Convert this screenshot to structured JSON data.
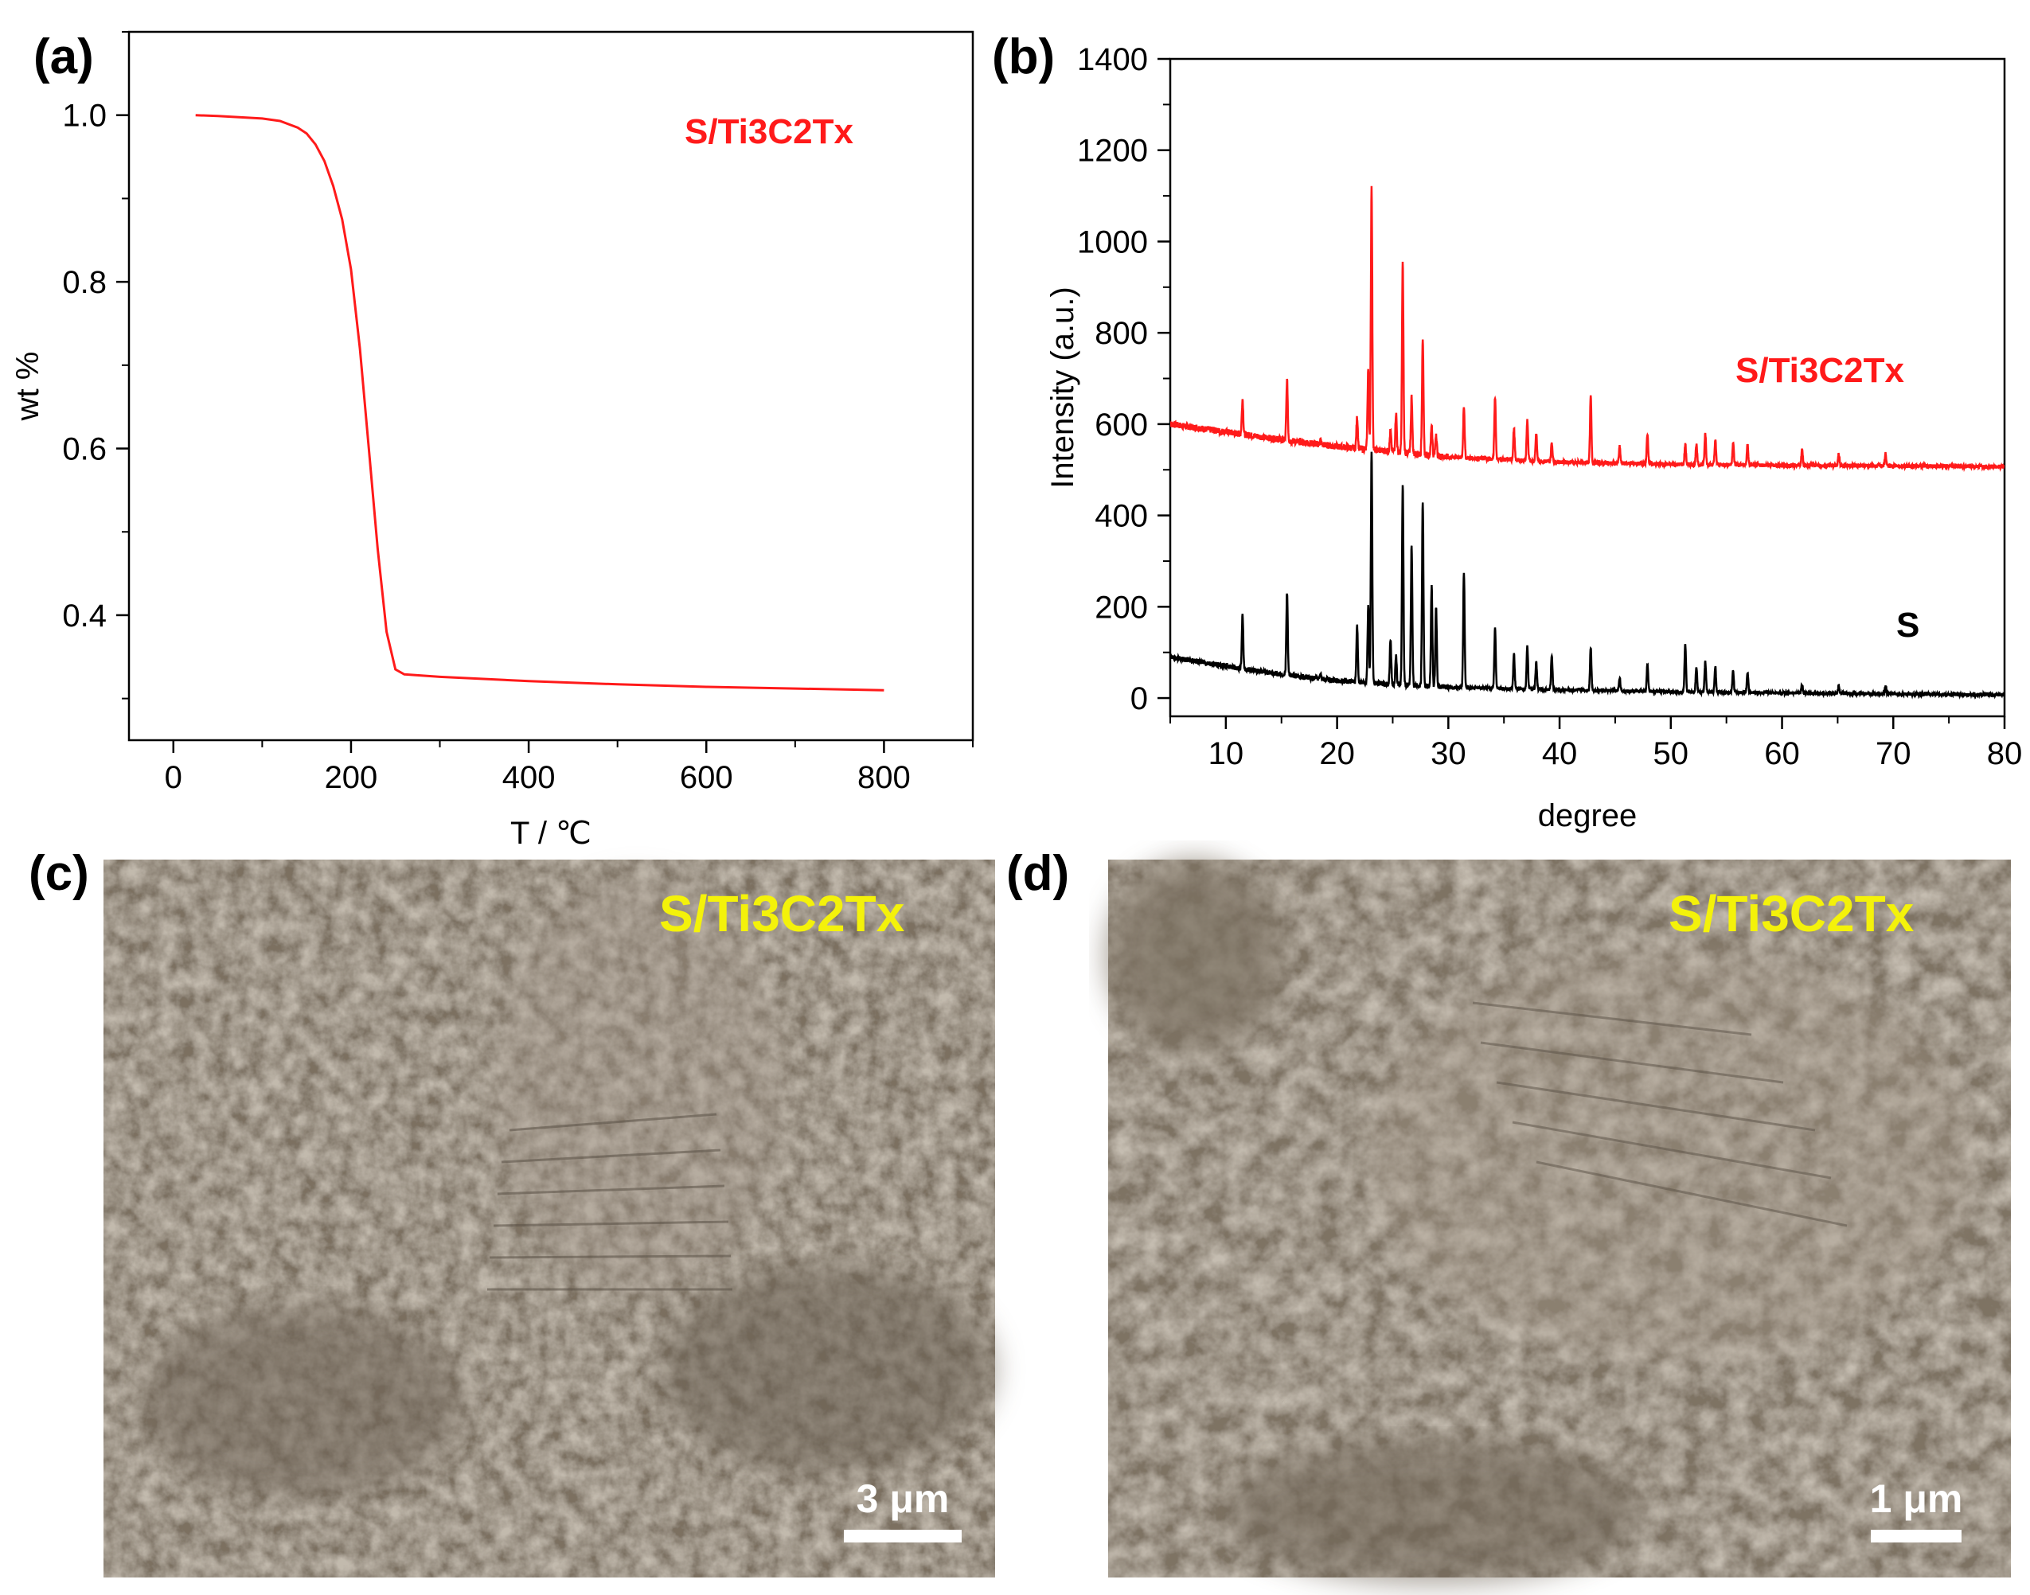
{
  "colors": {
    "red": "#ff1a1a",
    "black": "#000000",
    "sem_tint": "#8a7d6c",
    "sem_label": "#f4f20a"
  },
  "panels": {
    "a": {
      "letter": "(a)"
    },
    "b": {
      "letter": "(b)"
    },
    "c": {
      "letter": "(c)",
      "label": "S/Ti3C2Tx",
      "scale_bar": "3 μm"
    },
    "d": {
      "letter": "(d)",
      "label": "S/Ti3C2Tx",
      "scale_bar": "1 μm"
    }
  },
  "chart_data": [
    {
      "type": "line",
      "panel": "(a)",
      "xlabel": "T / ℃",
      "ylabel": "wt %",
      "xlim": [
        -50,
        900
      ],
      "ylim": [
        0.25,
        1.1
      ],
      "xticks": [
        0,
        200,
        400,
        600,
        800
      ],
      "yticks": [
        0.4,
        0.6,
        0.8,
        1.0
      ],
      "xtick_labels": [
        "0",
        "200",
        "400",
        "600",
        "800"
      ],
      "ytick_labels": [
        "0.4",
        "0.6",
        "0.8",
        "1.0"
      ],
      "grid": false,
      "series": [
        {
          "name": "S/Ti3C2Tx",
          "color": "#ff1a1a",
          "x": [
            25,
            50,
            100,
            120,
            140,
            150,
            160,
            170,
            180,
            190,
            200,
            210,
            220,
            230,
            240,
            250,
            260,
            300,
            400,
            500,
            600,
            700,
            800
          ],
          "y": [
            1.0,
            0.999,
            0.996,
            0.993,
            0.985,
            0.978,
            0.965,
            0.945,
            0.915,
            0.875,
            0.815,
            0.72,
            0.6,
            0.48,
            0.38,
            0.335,
            0.329,
            0.326,
            0.321,
            0.317,
            0.314,
            0.312,
            0.31
          ]
        }
      ]
    },
    {
      "type": "line",
      "panel": "(b)",
      "xlabel": "degree",
      "ylabel": "Intensity (a.u.)",
      "xlim": [
        5,
        80
      ],
      "ylim": [
        -40,
        1400
      ],
      "xticks": [
        10,
        20,
        30,
        40,
        50,
        60,
        70,
        80
      ],
      "yticks": [
        0,
        200,
        400,
        600,
        800,
        1000,
        1200,
        1400
      ],
      "xtick_labels": [
        "10",
        "20",
        "30",
        "40",
        "50",
        "60",
        "70",
        "80"
      ],
      "ytick_labels": [
        "0",
        "200",
        "400",
        "600",
        "800",
        "1000",
        "1200",
        "1400"
      ],
      "grid": false,
      "series": [
        {
          "name": "S/Ti3C2Tx",
          "color": "#ff1a1a",
          "baseline": [
            [
              5,
              600
            ],
            [
              10,
              583
            ],
            [
              15,
              566
            ],
            [
              20,
              551
            ],
            [
              25,
              540
            ],
            [
              30,
              528
            ],
            [
              40,
              517
            ],
            [
              50,
              512
            ],
            [
              60,
              510
            ],
            [
              80,
              507
            ]
          ],
          "peaks": [
            [
              11.5,
              655
            ],
            [
              15.5,
              695
            ],
            [
              18.5,
              565
            ],
            [
              21.8,
              615
            ],
            [
              22.8,
              720
            ],
            [
              23.1,
              1120
            ],
            [
              24.8,
              585
            ],
            [
              25.3,
              625
            ],
            [
              25.9,
              955
            ],
            [
              26.7,
              660
            ],
            [
              27.7,
              790
            ],
            [
              28.5,
              600
            ],
            [
              28.9,
              580
            ],
            [
              31.4,
              640
            ],
            [
              34.2,
              660
            ],
            [
              35.9,
              590
            ],
            [
              37.1,
              610
            ],
            [
              37.9,
              580
            ],
            [
              39.3,
              560
            ],
            [
              42.8,
              660
            ],
            [
              45.4,
              550
            ],
            [
              47.9,
              580
            ],
            [
              51.3,
              555
            ],
            [
              52.3,
              555
            ],
            [
              53.1,
              580
            ],
            [
              54.0,
              565
            ],
            [
              55.6,
              560
            ],
            [
              56.9,
              555
            ],
            [
              61.8,
              545
            ],
            [
              65.1,
              535
            ],
            [
              69.3,
              535
            ]
          ]
        },
        {
          "name": "S",
          "color": "#000000",
          "baseline": [
            [
              5,
              90
            ],
            [
              10,
              70
            ],
            [
              15,
              52
            ],
            [
              20,
              38
            ],
            [
              25,
              30
            ],
            [
              30,
              24
            ],
            [
              40,
              18
            ],
            [
              50,
              14
            ],
            [
              60,
              11
            ],
            [
              80,
              7
            ]
          ],
          "peaks": [
            [
              11.5,
              180
            ],
            [
              15.5,
              230
            ],
            [
              18.5,
              55
            ],
            [
              21.8,
              160
            ],
            [
              22.8,
              200
            ],
            [
              23.1,
              540
            ],
            [
              24.8,
              130
            ],
            [
              25.3,
              90
            ],
            [
              25.9,
              470
            ],
            [
              26.7,
              335
            ],
            [
              27.7,
              430
            ],
            [
              28.5,
              245
            ],
            [
              28.9,
              200
            ],
            [
              31.4,
              275
            ],
            [
              34.2,
              155
            ],
            [
              35.9,
              95
            ],
            [
              37.1,
              115
            ],
            [
              37.9,
              80
            ],
            [
              39.3,
              95
            ],
            [
              42.8,
              110
            ],
            [
              45.4,
              45
            ],
            [
              47.9,
              75
            ],
            [
              51.3,
              120
            ],
            [
              52.3,
              70
            ],
            [
              53.1,
              80
            ],
            [
              54.0,
              70
            ],
            [
              55.6,
              60
            ],
            [
              56.9,
              55
            ],
            [
              61.8,
              30
            ],
            [
              65.1,
              28
            ],
            [
              69.3,
              25
            ]
          ]
        }
      ]
    }
  ]
}
